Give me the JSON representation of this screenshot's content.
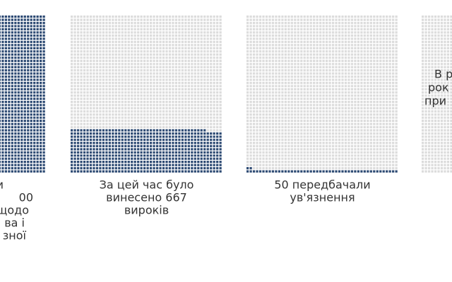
{
  "panels": [
    {
      "caption": [
        "и",
        "00",
        "щодо",
        "ва і",
        "зної"
      ],
      "count": 2400
    },
    {
      "caption": [
        "За цей час було",
        "винесено 667",
        "вироків"
      ],
      "count": 667
    },
    {
      "caption": [
        "50 передбачали",
        "ув'язнення"
      ],
      "count": 50
    },
    {
      "caption": [
        "В р",
        "рок",
        "при"
      ]
    }
  ],
  "grid": {
    "cols": 48,
    "rows": 50
  },
  "colors": {
    "filled": "#2d4a73",
    "empty": "#dcdcdc"
  }
}
